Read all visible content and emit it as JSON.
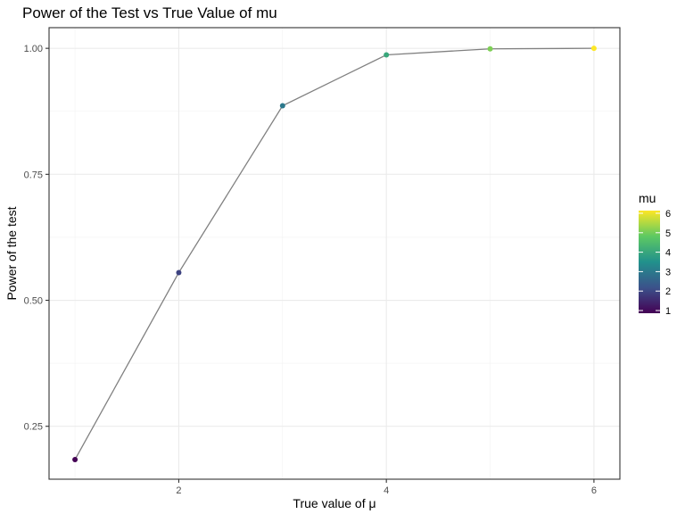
{
  "chart_data": {
    "type": "line",
    "title": "Power of the Test vs True Value of mu",
    "xlabel": "True value of μ",
    "ylabel": "Power of the test",
    "x": [
      1,
      2,
      3,
      4,
      5,
      6
    ],
    "y": [
      0.184,
      0.555,
      0.886,
      0.987,
      0.999,
      1.0
    ],
    "xlim": [
      0.75,
      6.25
    ],
    "ylim": [
      0.145,
      1.041
    ],
    "x_ticks": [
      2,
      4,
      6
    ],
    "x_tick_labels": [
      "2",
      "4",
      "6"
    ],
    "y_ticks": [
      0.25,
      0.5,
      0.75,
      1.0
    ],
    "y_tick_labels": [
      "0.25",
      "0.50",
      "0.75",
      "1.00"
    ],
    "point_color_by": "mu",
    "legend": {
      "title": "mu",
      "position": "right",
      "min": 1,
      "max": 6,
      "ticks": [
        1,
        2,
        3,
        4,
        5,
        6
      ],
      "tick_labels": [
        "1",
        "2",
        "3",
        "4",
        "5",
        "6"
      ]
    },
    "colormap": [
      "#440154",
      "#3b528b",
      "#21918c",
      "#5ec962",
      "#fde725"
    ],
    "line_color": "#808080",
    "grid": true
  }
}
